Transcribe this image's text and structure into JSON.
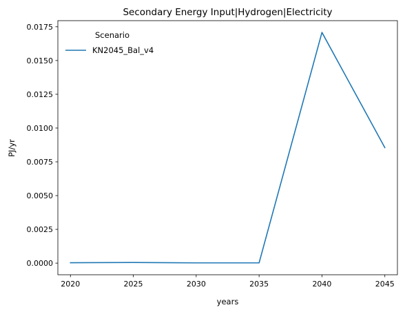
{
  "chart_data": {
    "type": "line",
    "title": "Secondary Energy Input|Hydrogen|Electricity",
    "xlabel": "years",
    "ylabel": "PJ/yr",
    "x": [
      2020,
      2025,
      2030,
      2035,
      2040,
      2045
    ],
    "xlim": [
      2019,
      2046
    ],
    "ylim": [
      -0.00086,
      0.01795
    ],
    "xticks": [
      "2020",
      "2025",
      "2030",
      "2035",
      "2040",
      "2045"
    ],
    "yticks": [
      "0.0000",
      "0.0025",
      "0.0050",
      "0.0075",
      "0.0100",
      "0.0125",
      "0.0150",
      "0.0175"
    ],
    "legend": {
      "title": "Scenario",
      "placement": "upper left"
    },
    "series": [
      {
        "name": "KN2045_Bal_v4",
        "color": "#1f77b4",
        "values": [
          3e-05,
          5e-05,
          2e-05,
          2e-05,
          0.01708,
          0.00855
        ]
      }
    ],
    "grid": false
  }
}
